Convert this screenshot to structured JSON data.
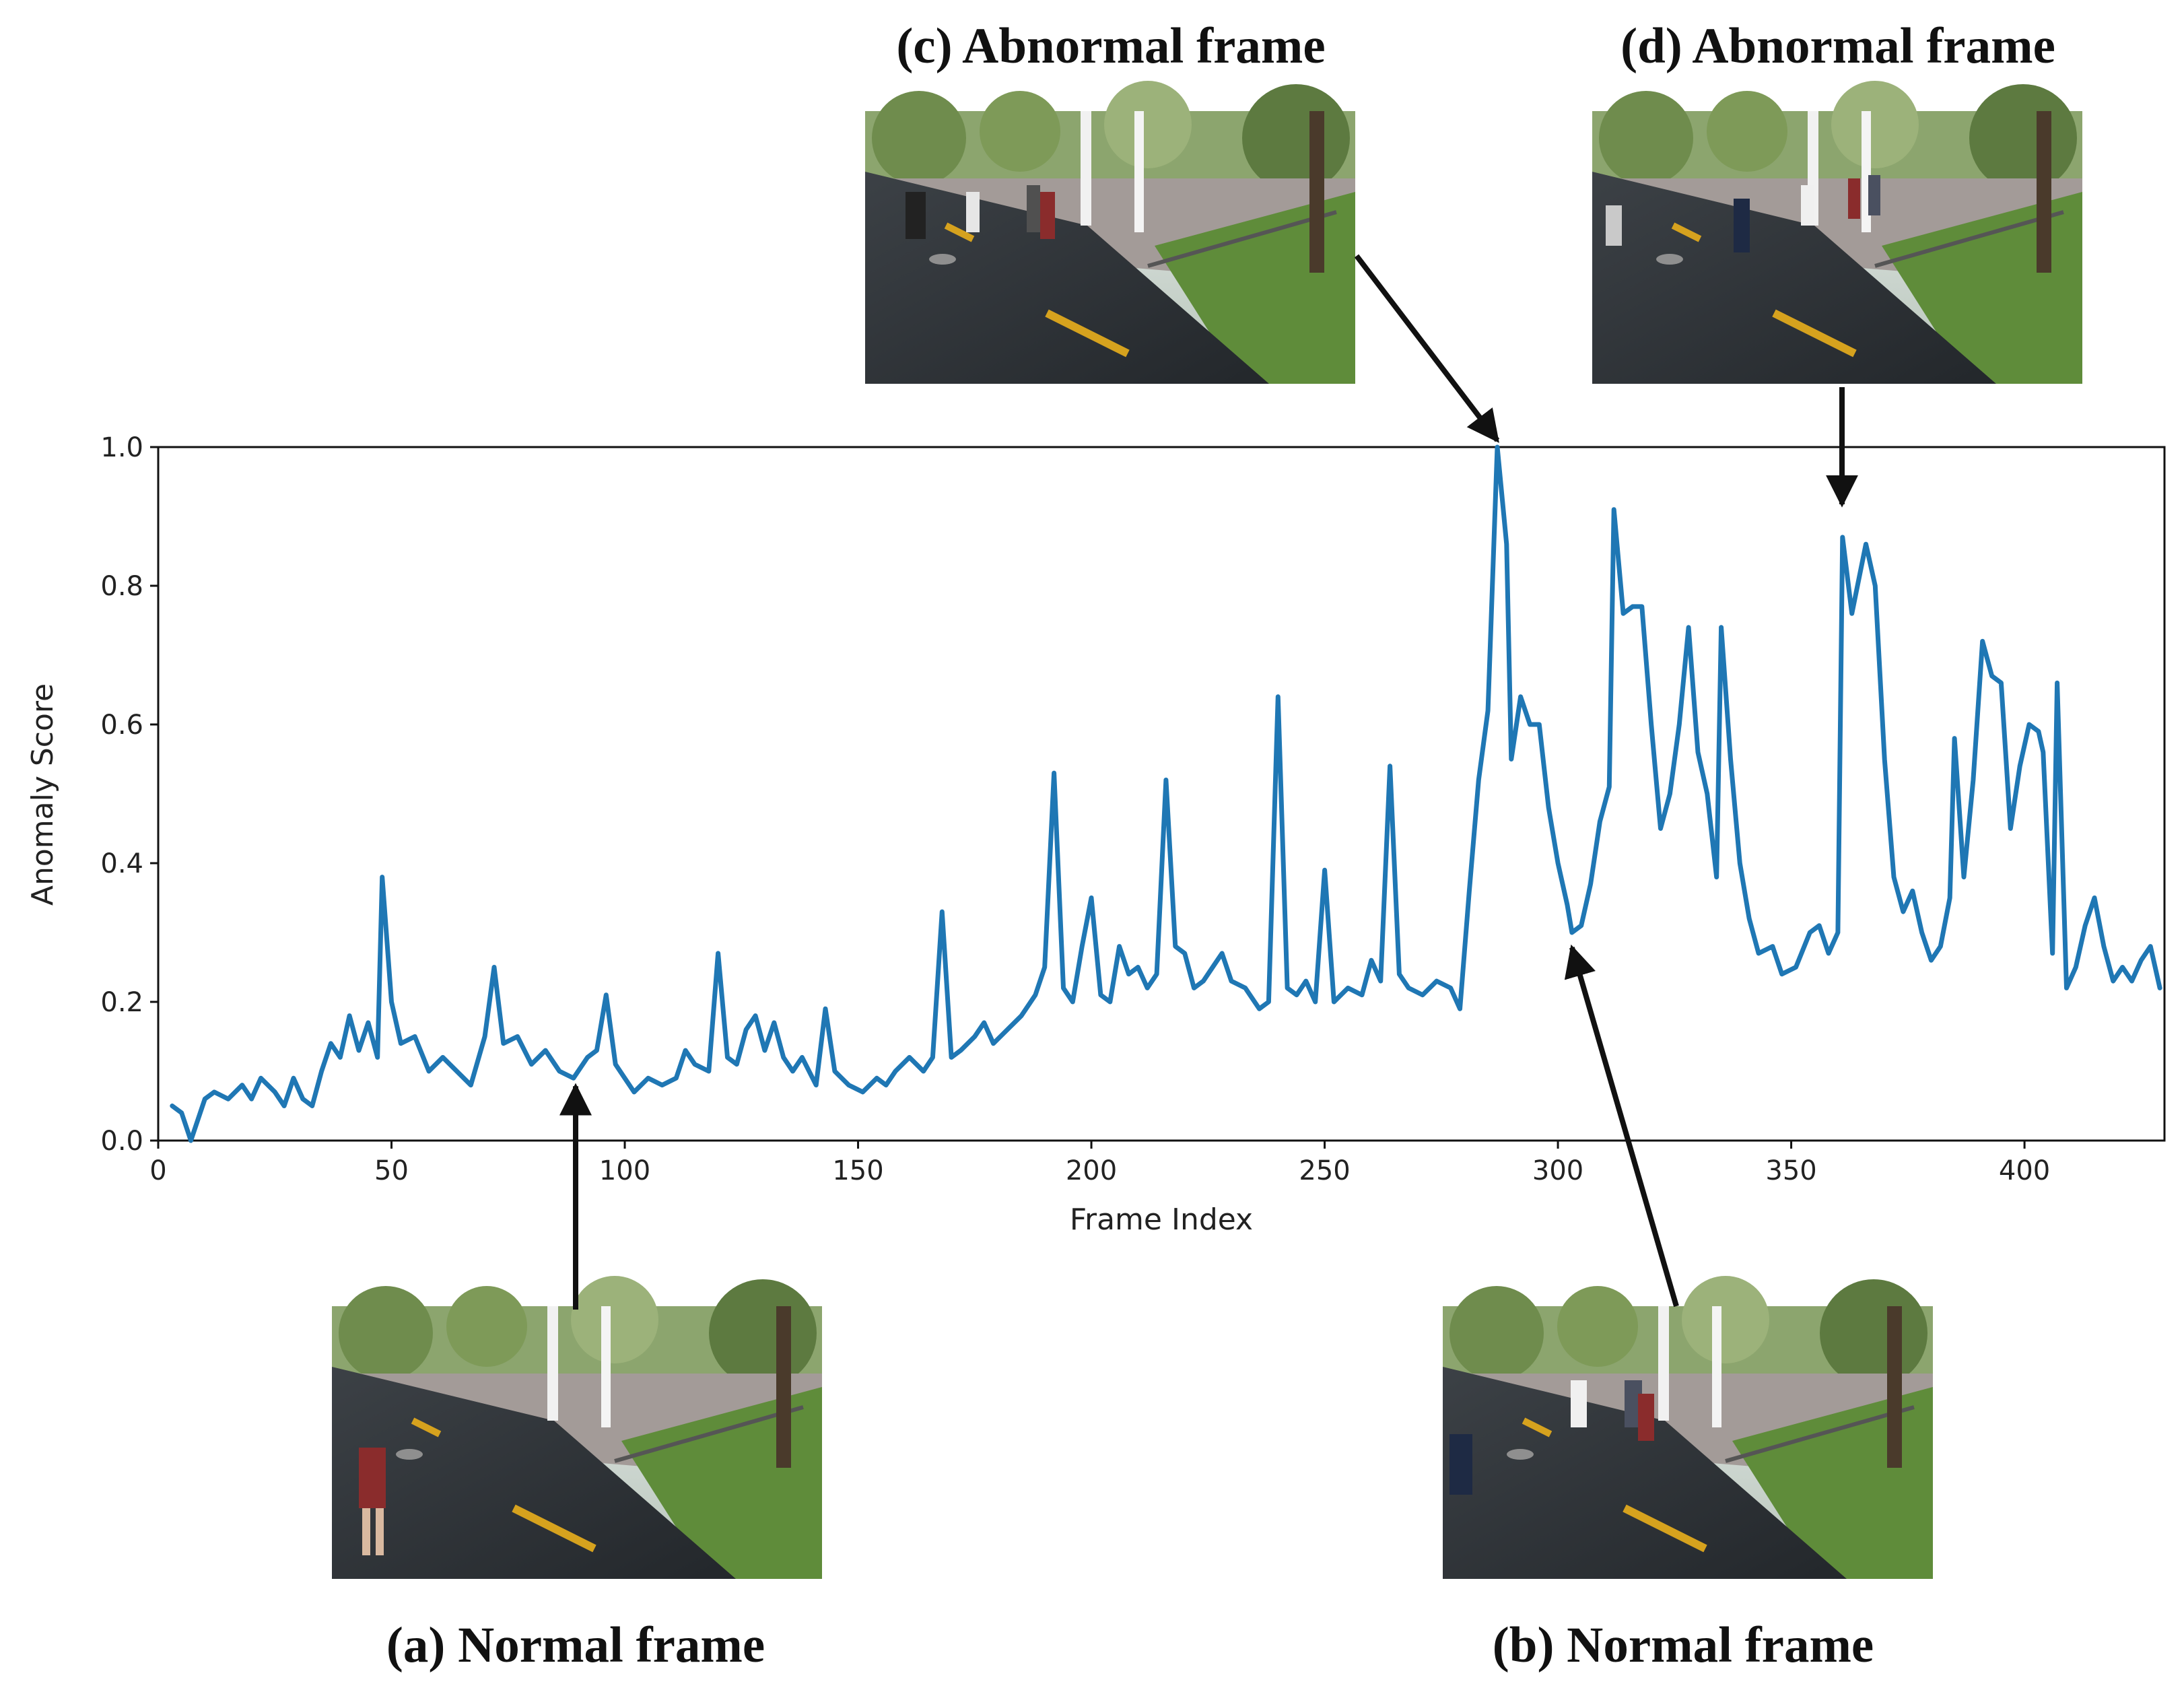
{
  "chart_data": {
    "type": "line",
    "title": "",
    "xlabel": "Frame Index",
    "ylabel": "Anomaly Score",
    "xlim": [
      0,
      430
    ],
    "ylim": [
      0,
      1.0
    ],
    "xticks": [
      0,
      50,
      100,
      150,
      200,
      250,
      300,
      350,
      400
    ],
    "yticks": [
      "0.0",
      "0.2",
      "0.4",
      "0.6",
      "0.8",
      "1.0"
    ],
    "line_color": "#1f77b4",
    "grid": false,
    "legend": "none",
    "series": [
      {
        "name": "",
        "points": [
          [
            3,
            0.05
          ],
          [
            5,
            0.04
          ],
          [
            7,
            0.0
          ],
          [
            10,
            0.06
          ],
          [
            12,
            0.07
          ],
          [
            15,
            0.06
          ],
          [
            18,
            0.08
          ],
          [
            20,
            0.06
          ],
          [
            22,
            0.09
          ],
          [
            25,
            0.07
          ],
          [
            27,
            0.05
          ],
          [
            29,
            0.09
          ],
          [
            31,
            0.06
          ],
          [
            33,
            0.05
          ],
          [
            35,
            0.1
          ],
          [
            37,
            0.14
          ],
          [
            39,
            0.12
          ],
          [
            41,
            0.18
          ],
          [
            43,
            0.13
          ],
          [
            45,
            0.17
          ],
          [
            47,
            0.12
          ],
          [
            48,
            0.38
          ],
          [
            50,
            0.2
          ],
          [
            52,
            0.14
          ],
          [
            55,
            0.15
          ],
          [
            58,
            0.1
          ],
          [
            61,
            0.12
          ],
          [
            64,
            0.1
          ],
          [
            67,
            0.08
          ],
          [
            70,
            0.15
          ],
          [
            72,
            0.25
          ],
          [
            74,
            0.14
          ],
          [
            77,
            0.15
          ],
          [
            80,
            0.11
          ],
          [
            83,
            0.13
          ],
          [
            86,
            0.1
          ],
          [
            89,
            0.09
          ],
          [
            92,
            0.12
          ],
          [
            94,
            0.13
          ],
          [
            96,
            0.21
          ],
          [
            98,
            0.11
          ],
          [
            100,
            0.09
          ],
          [
            102,
            0.07
          ],
          [
            105,
            0.09
          ],
          [
            108,
            0.08
          ],
          [
            111,
            0.09
          ],
          [
            113,
            0.13
          ],
          [
            115,
            0.11
          ],
          [
            118,
            0.1
          ],
          [
            120,
            0.27
          ],
          [
            122,
            0.12
          ],
          [
            124,
            0.11
          ],
          [
            126,
            0.16
          ],
          [
            128,
            0.18
          ],
          [
            130,
            0.13
          ],
          [
            132,
            0.17
          ],
          [
            134,
            0.12
          ],
          [
            136,
            0.1
          ],
          [
            138,
            0.12
          ],
          [
            141,
            0.08
          ],
          [
            143,
            0.19
          ],
          [
            145,
            0.1
          ],
          [
            148,
            0.08
          ],
          [
            151,
            0.07
          ],
          [
            154,
            0.09
          ],
          [
            156,
            0.08
          ],
          [
            158,
            0.1
          ],
          [
            161,
            0.12
          ],
          [
            164,
            0.1
          ],
          [
            166,
            0.12
          ],
          [
            168,
            0.33
          ],
          [
            170,
            0.12
          ],
          [
            172,
            0.13
          ],
          [
            175,
            0.15
          ],
          [
            177,
            0.17
          ],
          [
            179,
            0.14
          ],
          [
            182,
            0.16
          ],
          [
            185,
            0.18
          ],
          [
            188,
            0.21
          ],
          [
            190,
            0.25
          ],
          [
            192,
            0.53
          ],
          [
            194,
            0.22
          ],
          [
            196,
            0.2
          ],
          [
            198,
            0.28
          ],
          [
            200,
            0.35
          ],
          [
            202,
            0.21
          ],
          [
            204,
            0.2
          ],
          [
            206,
            0.28
          ],
          [
            208,
            0.24
          ],
          [
            210,
            0.25
          ],
          [
            212,
            0.22
          ],
          [
            214,
            0.24
          ],
          [
            216,
            0.52
          ],
          [
            218,
            0.28
          ],
          [
            220,
            0.27
          ],
          [
            222,
            0.22
          ],
          [
            224,
            0.23
          ],
          [
            226,
            0.25
          ],
          [
            228,
            0.27
          ],
          [
            230,
            0.23
          ],
          [
            233,
            0.22
          ],
          [
            236,
            0.19
          ],
          [
            238,
            0.2
          ],
          [
            240,
            0.64
          ],
          [
            242,
            0.22
          ],
          [
            244,
            0.21
          ],
          [
            246,
            0.23
          ],
          [
            248,
            0.2
          ],
          [
            250,
            0.39
          ],
          [
            252,
            0.2
          ],
          [
            255,
            0.22
          ],
          [
            258,
            0.21
          ],
          [
            260,
            0.26
          ],
          [
            262,
            0.23
          ],
          [
            264,
            0.54
          ],
          [
            266,
            0.24
          ],
          [
            268,
            0.22
          ],
          [
            271,
            0.21
          ],
          [
            274,
            0.23
          ],
          [
            277,
            0.22
          ],
          [
            279,
            0.19
          ],
          [
            281,
            0.36
          ],
          [
            283,
            0.52
          ],
          [
            285,
            0.62
          ],
          [
            287,
            1.0
          ],
          [
            289,
            0.86
          ],
          [
            290,
            0.55
          ],
          [
            292,
            0.64
          ],
          [
            294,
            0.6
          ],
          [
            296,
            0.6
          ],
          [
            298,
            0.48
          ],
          [
            300,
            0.4
          ],
          [
            302,
            0.34
          ],
          [
            303,
            0.3
          ],
          [
            305,
            0.31
          ],
          [
            307,
            0.37
          ],
          [
            309,
            0.46
          ],
          [
            311,
            0.51
          ],
          [
            312,
            0.91
          ],
          [
            314,
            0.76
          ],
          [
            316,
            0.77
          ],
          [
            318,
            0.77
          ],
          [
            320,
            0.6
          ],
          [
            322,
            0.45
          ],
          [
            324,
            0.5
          ],
          [
            326,
            0.6
          ],
          [
            328,
            0.74
          ],
          [
            330,
            0.56
          ],
          [
            332,
            0.5
          ],
          [
            334,
            0.38
          ],
          [
            335,
            0.74
          ],
          [
            337,
            0.55
          ],
          [
            339,
            0.4
          ],
          [
            341,
            0.32
          ],
          [
            343,
            0.27
          ],
          [
            346,
            0.28
          ],
          [
            348,
            0.24
          ],
          [
            351,
            0.25
          ],
          [
            354,
            0.3
          ],
          [
            356,
            0.31
          ],
          [
            358,
            0.27
          ],
          [
            360,
            0.3
          ],
          [
            361,
            0.87
          ],
          [
            363,
            0.76
          ],
          [
            366,
            0.86
          ],
          [
            368,
            0.8
          ],
          [
            370,
            0.55
          ],
          [
            372,
            0.38
          ],
          [
            374,
            0.33
          ],
          [
            376,
            0.36
          ],
          [
            378,
            0.3
          ],
          [
            380,
            0.26
          ],
          [
            382,
            0.28
          ],
          [
            384,
            0.35
          ],
          [
            385,
            0.58
          ],
          [
            387,
            0.38
          ],
          [
            389,
            0.52
          ],
          [
            391,
            0.72
          ],
          [
            393,
            0.67
          ],
          [
            395,
            0.66
          ],
          [
            397,
            0.45
          ],
          [
            399,
            0.54
          ],
          [
            401,
            0.6
          ],
          [
            403,
            0.59
          ],
          [
            404,
            0.56
          ],
          [
            406,
            0.27
          ],
          [
            407,
            0.66
          ],
          [
            409,
            0.22
          ],
          [
            411,
            0.25
          ],
          [
            413,
            0.31
          ],
          [
            415,
            0.35
          ],
          [
            417,
            0.28
          ],
          [
            419,
            0.23
          ],
          [
            421,
            0.25
          ],
          [
            423,
            0.23
          ],
          [
            425,
            0.26
          ],
          [
            427,
            0.28
          ],
          [
            429,
            0.22
          ]
        ]
      }
    ],
    "annotations": [
      {
        "key": "a",
        "label": "(a) Normal frame",
        "frame": 89,
        "score": 0.09
      },
      {
        "key": "b",
        "label": "(b) Normal frame",
        "frame": 303,
        "score": 0.29
      },
      {
        "key": "c",
        "label": "(c) Abnormal frame",
        "frame": 287,
        "score": 1.0
      },
      {
        "key": "d",
        "label": "(d) Abnormal frame",
        "frame": 361,
        "score": 0.9
      }
    ]
  }
}
